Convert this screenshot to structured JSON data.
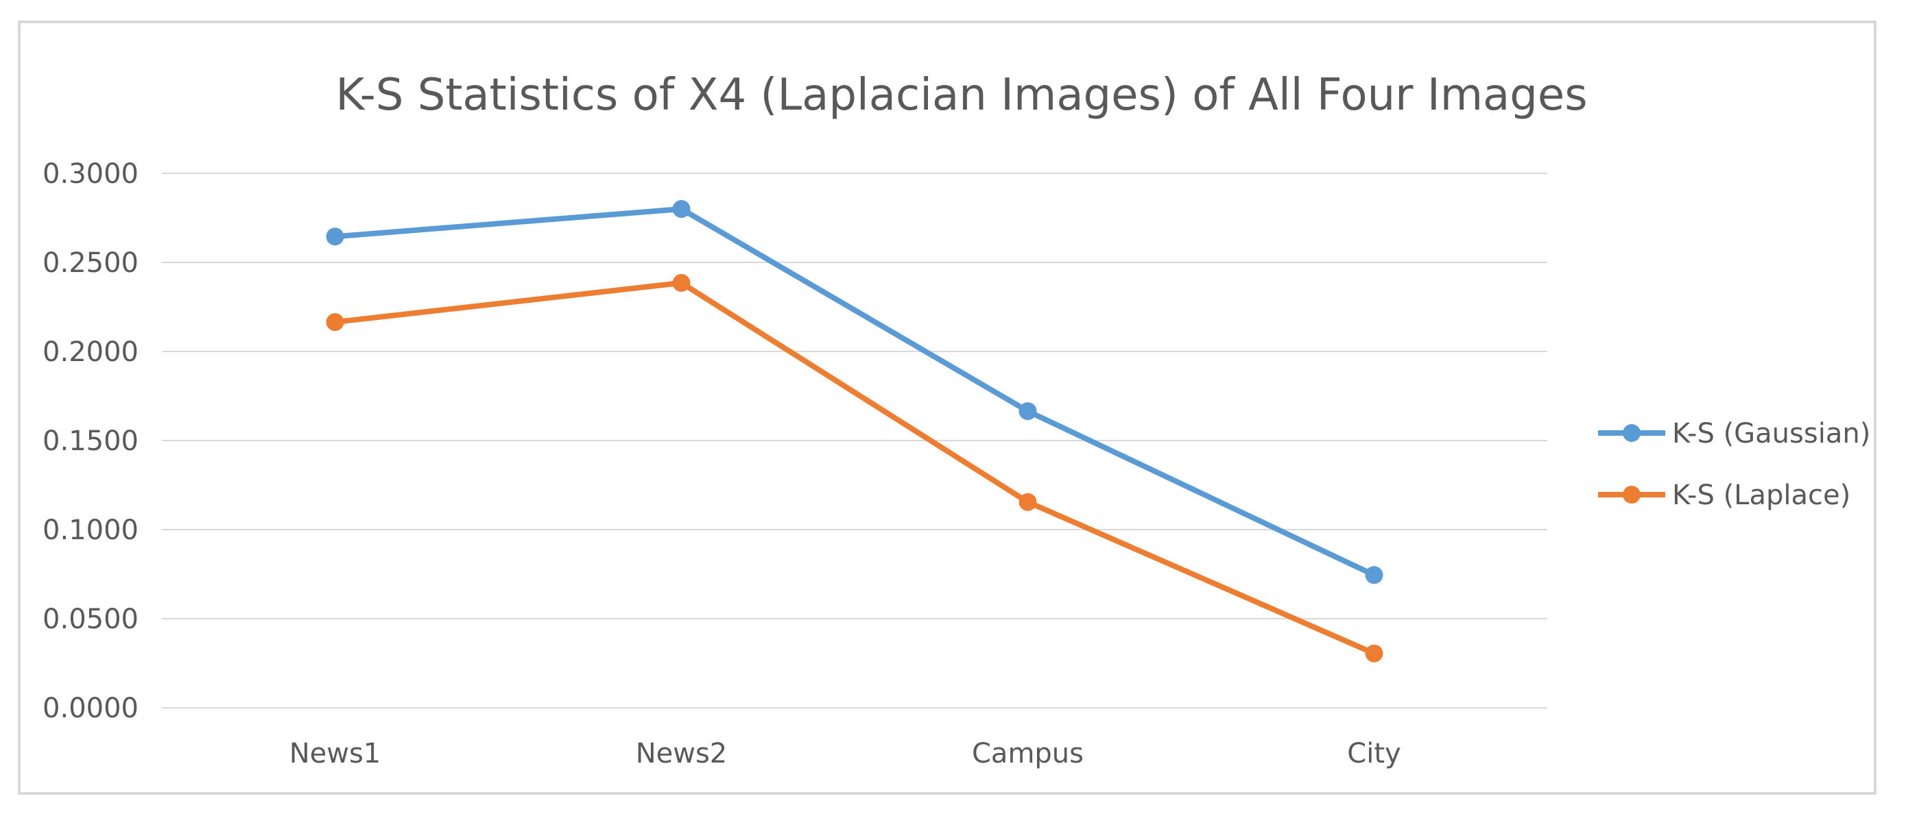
{
  "chart_data": {
    "type": "line",
    "title": "K-S Statistics of X4 (Laplacian Images) of All Four Images",
    "categories": [
      "News1",
      "News2",
      "Campus",
      "City"
    ],
    "y_ticks": [
      "0.0000",
      "0.0500",
      "0.1000",
      "0.1500",
      "0.2000",
      "0.2500",
      "0.3000"
    ],
    "ylim": [
      0,
      0.3
    ],
    "grid": true,
    "legend_position": "right",
    "series": [
      {
        "name": "K-S (Gaussian)",
        "color": "#5b9bd5",
        "values": [
          0.2645,
          0.28,
          0.1665,
          0.0745
        ]
      },
      {
        "name": "K-S (Laplace)",
        "color": "#ed7d31",
        "values": [
          0.2165,
          0.2385,
          0.1155,
          0.0305
        ]
      }
    ]
  }
}
